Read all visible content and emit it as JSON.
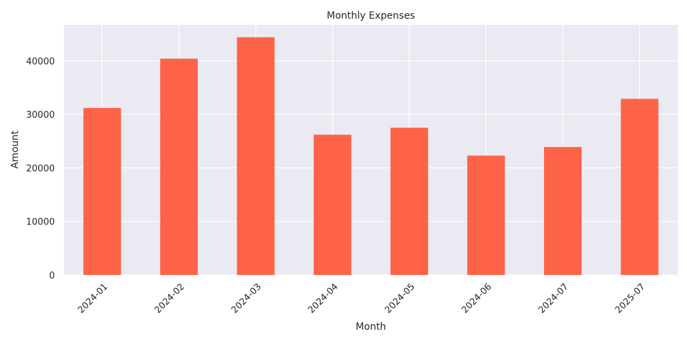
{
  "chart_data": {
    "type": "bar",
    "title": "Monthly Expenses",
    "xlabel": "Month",
    "ylabel": "Amount",
    "categories": [
      "2024-01",
      "2024-02",
      "2024-03",
      "2024-04",
      "2024-05",
      "2024-06",
      "2024-07",
      "2025-07"
    ],
    "values": [
      31200,
      40400,
      44400,
      26200,
      27500,
      22300,
      23900,
      32900
    ],
    "ylim": [
      0,
      46700
    ],
    "yticks": [
      0,
      10000,
      20000,
      30000,
      40000
    ],
    "ytick_labels": [
      "0",
      "10000",
      "20000",
      "30000",
      "40000"
    ],
    "grid": true,
    "bar_color": "#ff6347",
    "plot_background": "#eaeaf2"
  }
}
